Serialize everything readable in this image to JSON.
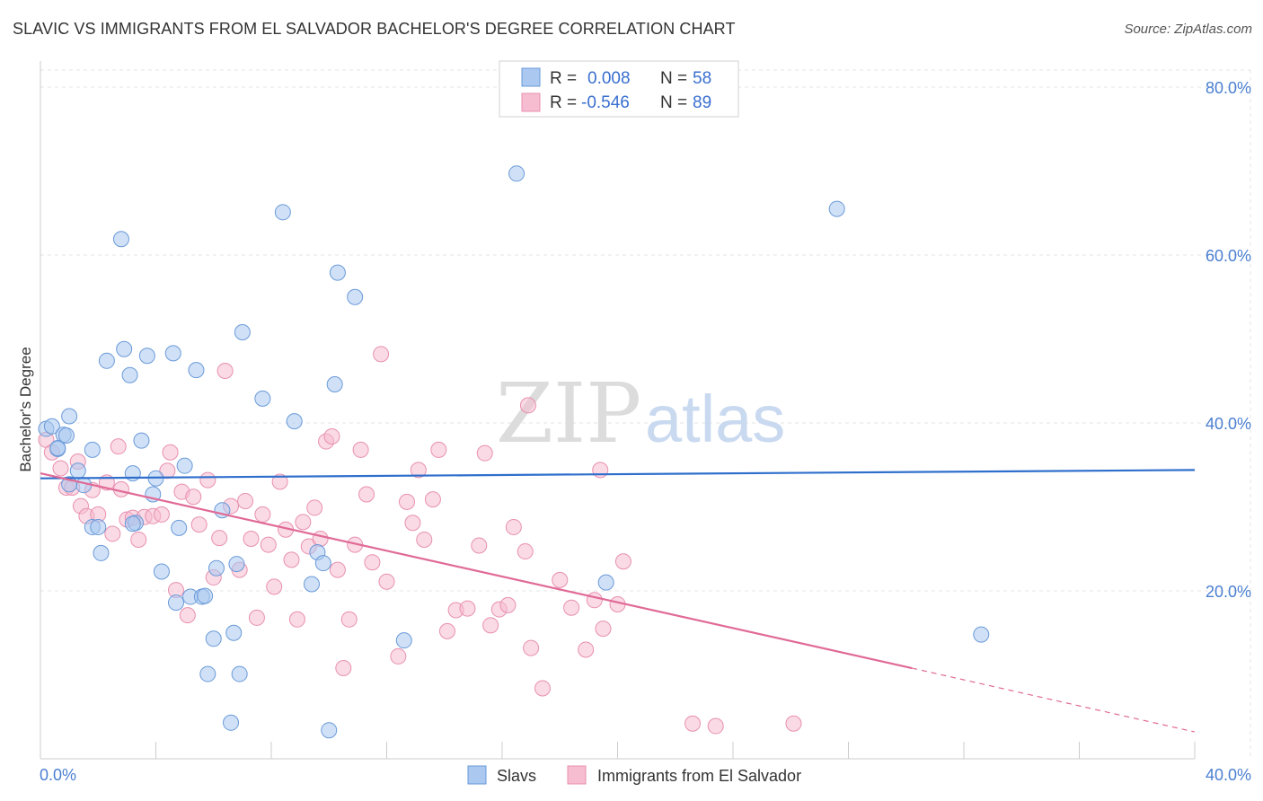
{
  "title": "SLAVIC VS IMMIGRANTS FROM EL SALVADOR BACHELOR'S DEGREE CORRELATION CHART",
  "source": "Source: ZipAtlas.com",
  "watermark": {
    "part1": "ZIP",
    "part2": "atlas"
  },
  "legend": {
    "rows": [
      {
        "r_label": "R =",
        "r_value": "0.008",
        "n_label": "N =",
        "n_value": "58"
      },
      {
        "r_label": "R =",
        "r_value": "-0.546",
        "n_label": "N =",
        "n_value": "89"
      }
    ]
  },
  "colors": {
    "slavs_fill": "#aac8f0",
    "slavs_stroke": "#6a9ad8",
    "slavs_line": "#2f6fcc",
    "salv_fill": "#f6bcd0",
    "salv_stroke": "#e890b0",
    "salv_line": "#e06a96",
    "grid": "#e4e4e4",
    "axis_text": "#4a7fd0"
  },
  "chart_data": {
    "type": "scatter",
    "title": "SLAVIC VS IMMIGRANTS FROM EL SALVADOR BACHELOR'S DEGREE CORRELATION CHART",
    "xlabel": "",
    "ylabel": "Bachelor's Degree",
    "xlim": [
      0,
      40
    ],
    "ylim": [
      0,
      82
    ],
    "x_tick_labels": [
      "0.0%",
      "40.0%"
    ],
    "y_ticks": [
      20,
      40,
      60,
      80
    ],
    "y_tick_labels": [
      "20.0%",
      "40.0%",
      "60.0%",
      "80.0%"
    ],
    "grid": true,
    "legend_position": "top-center",
    "series": [
      {
        "name": "Slavs",
        "r": 0.008,
        "n": 58,
        "trend": {
          "x": [
            0,
            40
          ],
          "y": [
            33.4,
            34.4
          ]
        },
        "points": [
          [
            0.2,
            39.3
          ],
          [
            0.4,
            39.6
          ],
          [
            0.6,
            36.9
          ],
          [
            0.8,
            38.6
          ],
          [
            1.0,
            40.8
          ],
          [
            0.9,
            38.5
          ],
          [
            1.8,
            36.8
          ],
          [
            1.3,
            34.3
          ],
          [
            1.5,
            32.6
          ],
          [
            1.8,
            27.6
          ],
          [
            2.1,
            24.5
          ],
          [
            2.3,
            47.4
          ],
          [
            2.8,
            61.9
          ],
          [
            2.9,
            48.8
          ],
          [
            3.1,
            45.7
          ],
          [
            3.2,
            34.0
          ],
          [
            3.3,
            28.1
          ],
          [
            3.5,
            37.9
          ],
          [
            3.7,
            48.0
          ],
          [
            3.9,
            31.5
          ],
          [
            4.0,
            33.4
          ],
          [
            4.2,
            22.3
          ],
          [
            4.6,
            48.3
          ],
          [
            4.8,
            27.5
          ],
          [
            5.0,
            34.9
          ],
          [
            5.4,
            46.3
          ],
          [
            4.7,
            18.6
          ],
          [
            5.2,
            19.3
          ],
          [
            5.6,
            19.3
          ],
          [
            5.8,
            10.1
          ],
          [
            6.0,
            14.3
          ],
          [
            6.1,
            22.7
          ],
          [
            6.3,
            29.6
          ],
          [
            6.6,
            4.3
          ],
          [
            6.7,
            15.0
          ],
          [
            6.8,
            23.2
          ],
          [
            6.9,
            10.1
          ],
          [
            7.0,
            50.8
          ],
          [
            7.7,
            42.9
          ],
          [
            8.4,
            65.1
          ],
          [
            8.8,
            40.2
          ],
          [
            9.4,
            20.8
          ],
          [
            9.6,
            24.6
          ],
          [
            9.8,
            23.3
          ],
          [
            10.0,
            3.4
          ],
          [
            10.2,
            44.6
          ],
          [
            10.3,
            57.9
          ],
          [
            10.9,
            55.0
          ],
          [
            12.6,
            14.1
          ],
          [
            16.5,
            69.7
          ],
          [
            19.6,
            21.0
          ],
          [
            27.6,
            65.5
          ],
          [
            32.6,
            14.8
          ],
          [
            0.6,
            37.0
          ],
          [
            1.0,
            32.7
          ],
          [
            2.0,
            27.6
          ],
          [
            3.2,
            28.0
          ],
          [
            5.7,
            19.4
          ]
        ]
      },
      {
        "name": "Immigrants from El Salvador",
        "r": -0.546,
        "n": 89,
        "trend": {
          "x": [
            0,
            30.2
          ],
          "y": [
            34.0,
            10.8
          ]
        },
        "trend_dashed": {
          "x": [
            30.2,
            40
          ],
          "y": [
            10.8,
            3.2
          ]
        },
        "points": [
          [
            0.2,
            38.0
          ],
          [
            0.4,
            36.5
          ],
          [
            0.7,
            34.6
          ],
          [
            0.9,
            32.3
          ],
          [
            1.1,
            32.3
          ],
          [
            1.3,
            35.4
          ],
          [
            1.4,
            30.1
          ],
          [
            1.6,
            28.9
          ],
          [
            1.8,
            32.0
          ],
          [
            2.0,
            29.1
          ],
          [
            2.3,
            32.9
          ],
          [
            2.5,
            26.8
          ],
          [
            2.7,
            37.2
          ],
          [
            2.8,
            32.1
          ],
          [
            3.0,
            28.5
          ],
          [
            3.2,
            28.7
          ],
          [
            3.4,
            26.1
          ],
          [
            3.6,
            28.8
          ],
          [
            3.9,
            28.9
          ],
          [
            4.2,
            29.1
          ],
          [
            4.4,
            34.3
          ],
          [
            4.5,
            36.5
          ],
          [
            4.7,
            20.1
          ],
          [
            4.9,
            31.8
          ],
          [
            5.1,
            17.1
          ],
          [
            5.3,
            31.2
          ],
          [
            5.5,
            27.9
          ],
          [
            5.8,
            33.2
          ],
          [
            6.0,
            21.6
          ],
          [
            6.2,
            26.3
          ],
          [
            6.4,
            46.2
          ],
          [
            6.6,
            30.1
          ],
          [
            6.9,
            22.5
          ],
          [
            7.1,
            30.7
          ],
          [
            7.3,
            26.2
          ],
          [
            7.5,
            16.8
          ],
          [
            7.7,
            29.1
          ],
          [
            7.9,
            25.5
          ],
          [
            8.1,
            20.5
          ],
          [
            8.3,
            33.0
          ],
          [
            8.5,
            27.3
          ],
          [
            8.7,
            23.7
          ],
          [
            8.9,
            16.6
          ],
          [
            9.1,
            28.2
          ],
          [
            9.3,
            25.3
          ],
          [
            9.5,
            29.9
          ],
          [
            9.7,
            26.2
          ],
          [
            9.9,
            37.8
          ],
          [
            10.1,
            38.4
          ],
          [
            10.3,
            22.5
          ],
          [
            10.5,
            10.8
          ],
          [
            10.7,
            16.6
          ],
          [
            10.9,
            25.5
          ],
          [
            11.1,
            36.8
          ],
          [
            11.3,
            31.5
          ],
          [
            11.5,
            23.4
          ],
          [
            11.8,
            48.2
          ],
          [
            12.0,
            21.1
          ],
          [
            12.4,
            12.2
          ],
          [
            12.7,
            30.6
          ],
          [
            12.9,
            28.1
          ],
          [
            13.1,
            34.4
          ],
          [
            13.3,
            26.1
          ],
          [
            13.6,
            30.9
          ],
          [
            13.8,
            36.8
          ],
          [
            14.1,
            15.2
          ],
          [
            14.4,
            17.7
          ],
          [
            14.8,
            17.9
          ],
          [
            15.2,
            25.4
          ],
          [
            15.4,
            36.4
          ],
          [
            15.6,
            15.9
          ],
          [
            15.9,
            17.8
          ],
          [
            16.2,
            18.3
          ],
          [
            16.4,
            27.6
          ],
          [
            16.8,
            24.7
          ],
          [
            17.0,
            13.2
          ],
          [
            17.4,
            8.4
          ],
          [
            18.0,
            21.3
          ],
          [
            18.4,
            18.0
          ],
          [
            18.9,
            13.0
          ],
          [
            19.2,
            18.9
          ],
          [
            19.4,
            34.4
          ],
          [
            19.5,
            15.5
          ],
          [
            20.0,
            18.4
          ],
          [
            20.2,
            23.5
          ],
          [
            22.6,
            4.2
          ],
          [
            23.4,
            3.9
          ],
          [
            26.1,
            4.2
          ],
          [
            16.9,
            42.1
          ]
        ]
      }
    ],
    "bottom_legend": [
      "Slavs",
      "Immigrants from El Salvador"
    ]
  }
}
